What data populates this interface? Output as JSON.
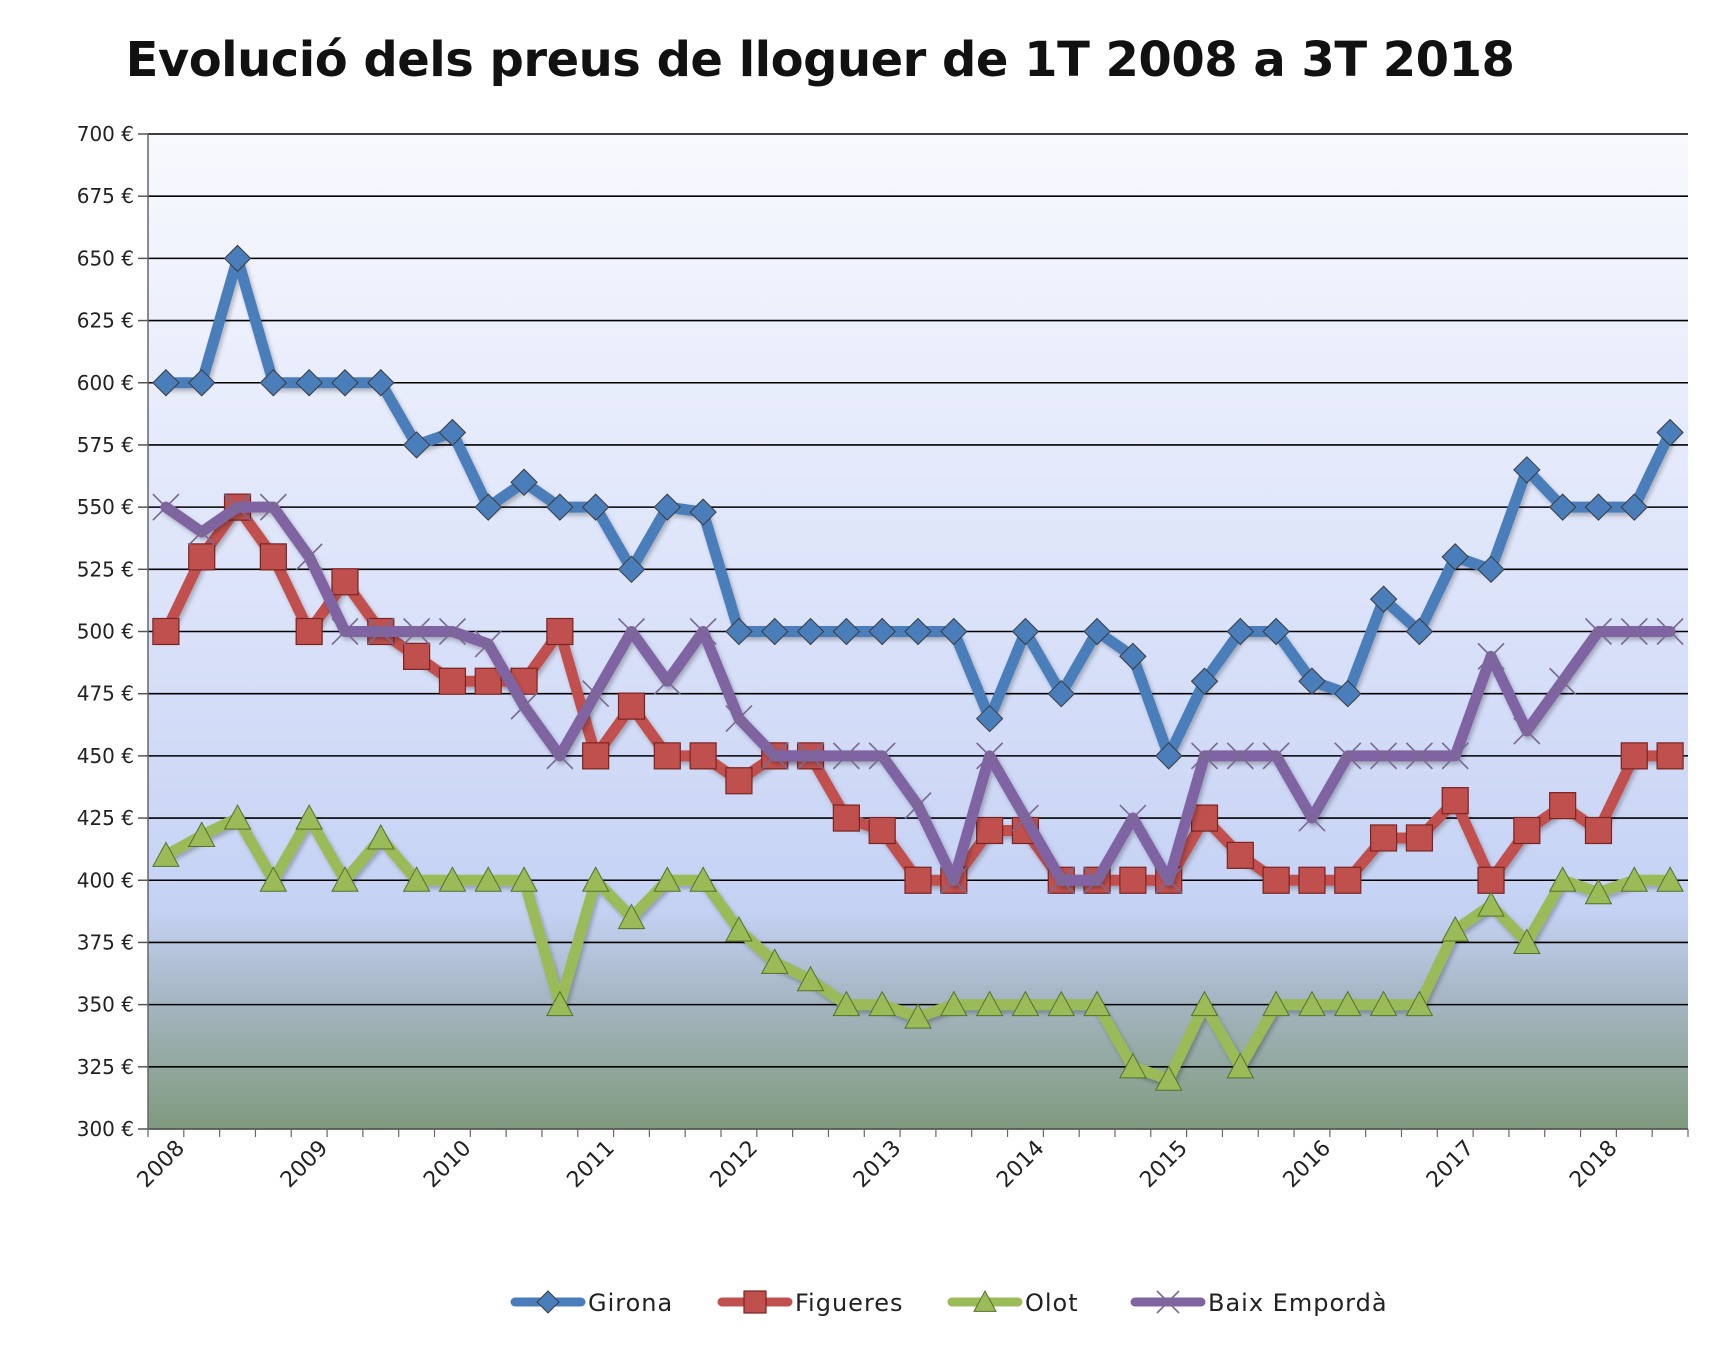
{
  "chart_data": {
    "type": "line",
    "title": "Evolució dels preus de lloguer de 1T 2008 a 3T 2018",
    "ylim": [
      300,
      700
    ],
    "y_ticks": [
      300,
      325,
      350,
      375,
      400,
      425,
      450,
      475,
      500,
      525,
      550,
      575,
      600,
      625,
      650,
      675,
      700
    ],
    "y_tick_labels": [
      "300 €",
      "325 €",
      "350 €",
      "375 €",
      "400 €",
      "425 €",
      "450 €",
      "475 €",
      "500 €",
      "525 €",
      "550 €",
      "575 €",
      "600 €",
      "625 €",
      "650 €",
      "675 €",
      "700 €"
    ],
    "x_tick_labels": [
      "2008",
      "2009",
      "2010",
      "2011",
      "2012",
      "2013",
      "2014",
      "2015",
      "2016",
      "2017",
      "2018"
    ],
    "x_label_period": "1T",
    "grid": true,
    "legend_position": "bottom",
    "series": [
      {
        "name": "Girona",
        "color": "#4a7ebb",
        "marker": "diamond",
        "values": [
          600,
          600,
          650,
          600,
          600,
          600,
          600,
          575,
          580,
          550,
          560,
          550,
          550,
          525,
          550,
          548,
          500,
          500,
          500,
          500,
          500,
          500,
          500,
          465,
          500,
          475,
          500,
          490,
          450,
          480,
          500,
          500,
          480,
          475,
          513,
          500,
          530,
          525,
          565,
          550,
          550,
          550,
          580
        ]
      },
      {
        "name": "Figueres",
        "color": "#c0504d",
        "marker": "square",
        "values": [
          500,
          530,
          550,
          530,
          500,
          520,
          500,
          490,
          480,
          480,
          480,
          500,
          450,
          470,
          450,
          450,
          440,
          450,
          450,
          425,
          420,
          400,
          400,
          420,
          420,
          400,
          400,
          400,
          400,
          425,
          410,
          400,
          400,
          400,
          417,
          417,
          432,
          400,
          420,
          430,
          420,
          450,
          450
        ]
      },
      {
        "name": "Olot",
        "color": "#9bbb59",
        "marker": "triangle",
        "values": [
          410,
          418,
          425,
          400,
          425,
          400,
          417,
          400,
          400,
          400,
          400,
          350,
          400,
          385,
          400,
          400,
          380,
          367,
          360,
          350,
          350,
          345,
          350,
          350,
          350,
          350,
          350,
          325,
          320,
          350,
          325,
          350,
          350,
          350,
          350,
          350,
          380,
          390,
          375,
          400,
          395,
          400,
          400
        ]
      },
      {
        "name": "Baix Empordà",
        "color": "#8064a2",
        "marker": "x",
        "values": [
          550,
          540,
          550,
          550,
          530,
          500,
          500,
          500,
          500,
          495,
          470,
          450,
          475,
          500,
          480,
          500,
          465,
          450,
          450,
          450,
          450,
          430,
          400,
          450,
          425,
          400,
          400,
          425,
          400,
          450,
          450,
          450,
          425,
          450,
          450,
          450,
          450,
          490,
          460,
          480,
          500,
          500,
          500
        ]
      }
    ]
  }
}
